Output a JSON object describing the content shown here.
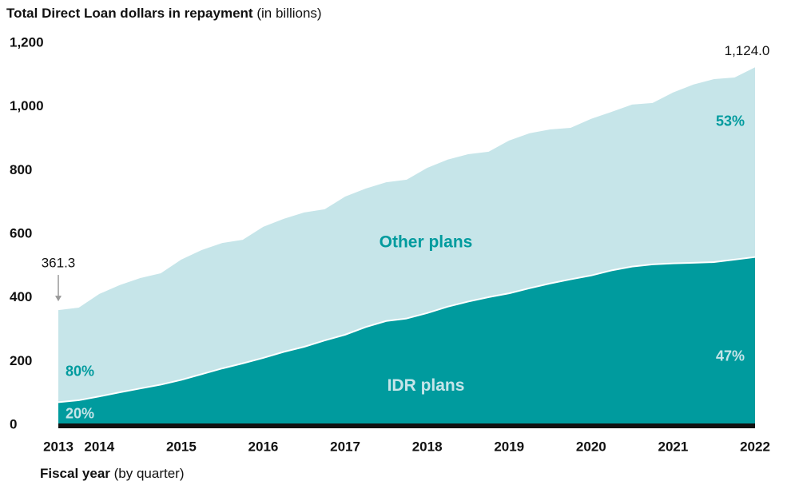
{
  "chart_data": {
    "type": "stacked_area",
    "title": "Total Direct Loan dollars in repayment",
    "title_note": "(in billions)",
    "x_label": "Fiscal year",
    "x_label_note": "(by quarter)",
    "categories": [
      "2013",
      null,
      "2014",
      null,
      null,
      null,
      "2015",
      null,
      null,
      null,
      "2016",
      null,
      null,
      null,
      "2017",
      null,
      null,
      null,
      "2018",
      null,
      null,
      null,
      "2019",
      null,
      null,
      null,
      "2020",
      null,
      null,
      null,
      "2021",
      null,
      null,
      null,
      "2022"
    ],
    "series": [
      {
        "name": "IDR plans",
        "color": "#009b9e",
        "label_color": "#c6e5e9",
        "start_share": "20%",
        "end_share": "47%",
        "values": [
          72,
          78,
          90,
          103,
          115,
          127,
          142,
          160,
          178,
          194,
          211,
          230,
          246,
          266,
          284,
          308,
          327,
          335,
          352,
          372,
          388,
          402,
          414,
          430,
          445,
          458,
          470,
          486,
          498,
          505,
          508,
          510,
          512,
          520,
          528
        ]
      },
      {
        "name": "Other plans",
        "color": "#c6e5e9",
        "label_color": "#009b9e",
        "start_share": "80%",
        "end_share": "53%",
        "values": [
          289.3,
          291,
          322,
          337,
          347,
          350,
          378,
          390,
          394,
          388,
          412,
          418,
          422,
          412,
          434,
          435,
          436,
          436,
          456,
          462,
          463,
          457,
          480,
          487,
          484,
          476,
          492,
          498,
          509,
          507,
          537,
          560,
          575,
          572,
          596
        ]
      }
    ],
    "start_total": "361.3",
    "end_total": "1,124.0",
    "ylim": [
      0,
      1200
    ],
    "yticks": [
      0,
      200,
      400,
      600,
      800,
      {
        "value": 1000,
        "label": "1,000"
      },
      {
        "value": 1200,
        "label": "1,200"
      }
    ],
    "grid": false
  }
}
